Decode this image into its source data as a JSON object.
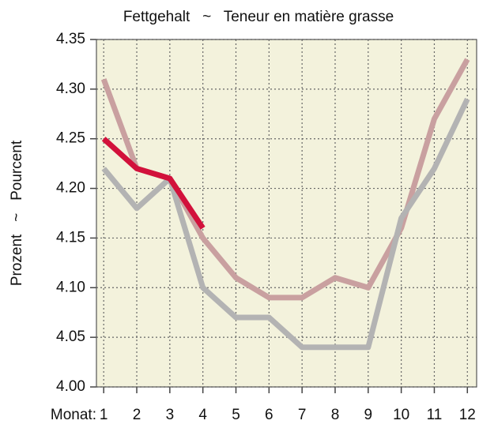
{
  "chart_data": {
    "type": "line",
    "title": "Fettgehalt   ~   Teneur en matière grasse",
    "y_label": "Prozent   ~   Pourcent",
    "x_label": "Monat:",
    "x": [
      1,
      2,
      3,
      4,
      5,
      6,
      7,
      8,
      9,
      10,
      11,
      12
    ],
    "series": [
      {
        "color": "#c9a0a0",
        "values": [
          4.31,
          4.22,
          4.21,
          4.15,
          4.11,
          4.09,
          4.09,
          4.11,
          4.1,
          4.16,
          4.27,
          4.33
        ]
      },
      {
        "color": "#b3b3b3",
        "values": [
          4.22,
          4.18,
          4.21,
          4.1,
          4.07,
          4.07,
          4.04,
          4.04,
          4.04,
          4.17,
          4.22,
          4.29
        ]
      },
      {
        "color": "#d2113b",
        "values": [
          4.25,
          4.22,
          4.21,
          4.16,
          null,
          null,
          null,
          null,
          null,
          null,
          null,
          null
        ]
      }
    ],
    "xlim": [
      0.78,
      12.28
    ],
    "xticks": [
      1,
      2,
      3,
      4,
      5,
      6,
      7,
      8,
      9,
      10,
      11,
      12
    ],
    "ylim": [
      4.0,
      4.35
    ],
    "yticks": [
      {
        "value": 4.0,
        "label": "4.00"
      },
      4.05,
      {
        "value": 4.1,
        "label": "4.10"
      },
      4.15,
      {
        "value": 4.2,
        "label": "4.20"
      },
      4.25,
      {
        "value": 4.3,
        "label": "4.30"
      },
      4.35
    ],
    "grid": true
  }
}
